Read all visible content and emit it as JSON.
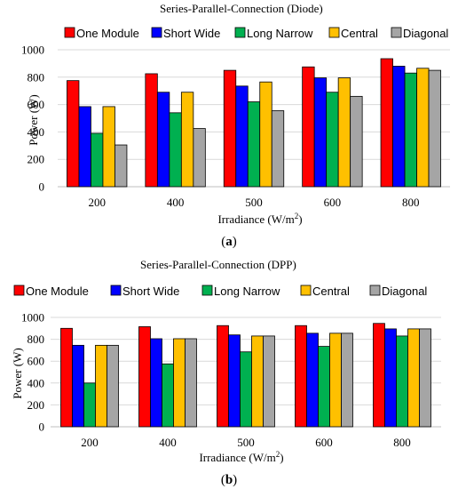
{
  "chart_data": [
    {
      "type": "bar",
      "title": "Series-Parallel-Connection  (Diode)",
      "xlabel": "Irradiance (W/m²)",
      "ylabel": "Power (W)",
      "caption_letter": "a",
      "ylim": [
        0,
        1000
      ],
      "yticks": [
        0,
        200,
        400,
        600,
        800,
        1000
      ],
      "grid": true,
      "legend_position": "top",
      "categories": [
        "200",
        "400",
        "500",
        "600",
        "800"
      ],
      "series": [
        {
          "name": "One Module",
          "color": "#ff0000",
          "values": [
            775,
            825,
            850,
            875,
            935
          ]
        },
        {
          "name": "Short Wide",
          "color": "#0000ff",
          "values": [
            585,
            690,
            735,
            795,
            880
          ]
        },
        {
          "name": "Long Narrow",
          "color": "#00b050",
          "values": [
            390,
            540,
            620,
            690,
            830
          ]
        },
        {
          "name": "Central",
          "color": "#ffc000",
          "values": [
            585,
            690,
            765,
            795,
            865
          ]
        },
        {
          "name": "Diagonal",
          "color": "#a5a5a5",
          "values": [
            305,
            425,
            555,
            660,
            850
          ]
        }
      ]
    },
    {
      "type": "bar",
      "title": "Series-Parallel-Connection  (DPP)",
      "xlabel": "Irradiance (W/m²)",
      "ylabel": "Power (W)",
      "caption_letter": "b",
      "ylim": [
        0,
        1000
      ],
      "yticks": [
        0,
        200,
        400,
        600,
        800,
        1000
      ],
      "grid": true,
      "legend_position": "top",
      "categories": [
        "200",
        "400",
        "500",
        "600",
        "800"
      ],
      "series": [
        {
          "name": "One Module",
          "color": "#ff0000",
          "values": [
            900,
            915,
            925,
            925,
            945
          ]
        },
        {
          "name": "Short Wide",
          "color": "#0000ff",
          "values": [
            745,
            805,
            840,
            855,
            895
          ]
        },
        {
          "name": "Long Narrow",
          "color": "#00b050",
          "values": [
            400,
            575,
            685,
            735,
            830
          ]
        },
        {
          "name": "Central",
          "color": "#ffc000",
          "values": [
            745,
            805,
            830,
            855,
            895
          ]
        },
        {
          "name": "Diagonal",
          "color": "#a5a5a5",
          "values": [
            745,
            805,
            830,
            855,
            895
          ]
        }
      ]
    }
  ]
}
